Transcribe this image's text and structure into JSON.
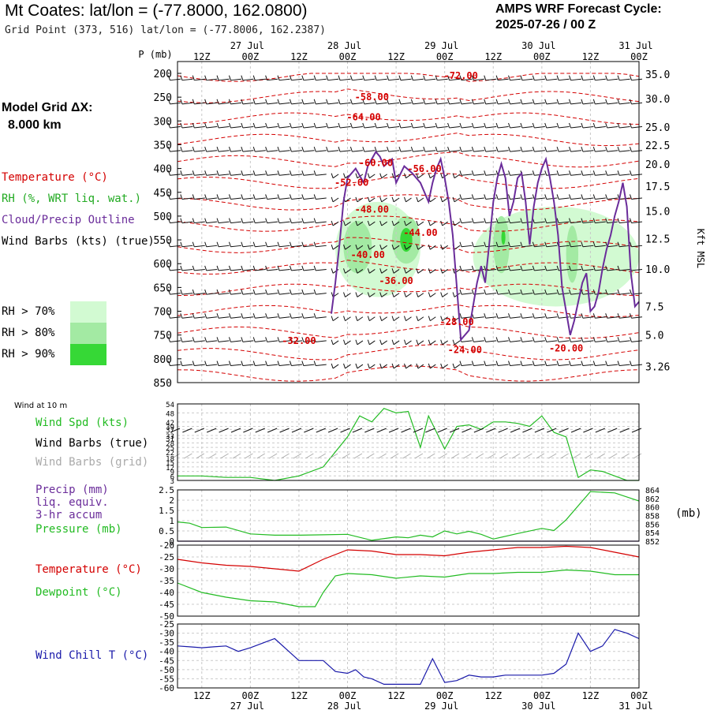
{
  "header": {
    "title": "Mt Coates:  lat/lon = (-77.8000, 162.0800)",
    "subtitle": "Grid Point (373, 516) lat/lon = (-77.8006, 162.2387)",
    "cycle_line1": "AMPS WRF Forecast Cycle:",
    "cycle_line2": "2025-07-26 / 00  Z"
  },
  "model_grid": {
    "line1": "Model Grid ΔX:",
    "line2": "8.000 km"
  },
  "legend": {
    "temperature": "Temperature (°C)",
    "rh": "RH (%, WRT liq. wat.)",
    "cloud": "Cloud/Precip Outline",
    "wind": "Wind Barbs (kts) (true)",
    "rh70": "RH > 70%",
    "rh80": "RH > 80%",
    "rh90": "RH > 90%"
  },
  "colors": {
    "temperature": "#d40000",
    "rh70": "#d2fad2",
    "rh80": "#a3eaa3",
    "rh90": "#36d836",
    "cloud": "#6a2c9a",
    "wind_spd": "#22bb22",
    "pressure": "#22bb22",
    "precip": "#6a2c9a",
    "dewpoint": "#22bb22",
    "windchill": "#1a1aaa",
    "grid_barbs": "#aaaaaa"
  },
  "panel_labels": {
    "wind10": "Wind at 10 m",
    "wind_spd": "Wind Spd (kts)",
    "wind_barbs_true": "Wind Barbs (true)",
    "wind_barbs_grid": "Wind Barbs (grid)",
    "precip1": "Precip (mm)",
    "precip2": "liq. equiv.",
    "precip3": "3-hr accum",
    "pressure": "Pressure (mb)",
    "pressure_unit": "(mb)",
    "temperature": "Temperature (°C)",
    "dewpoint": "Dewpoint (°C)",
    "windchill": "Wind Chill T (°C)"
  },
  "chart_data": {
    "type": "line",
    "time_axis": {
      "start": "2025-07-26 06Z",
      "end": "2025-07-31 00Z",
      "hour_labels": [
        "12Z",
        "00Z",
        "12Z",
        "00Z",
        "12Z",
        "00Z",
        "12Z",
        "00Z",
        "12Z",
        "00Z"
      ],
      "hour_ticks_h": [
        6,
        18,
        30,
        42,
        54,
        66,
        78,
        90,
        102,
        114
      ],
      "date_labels": [
        "27 Jul",
        "28 Jul",
        "29 Jul",
        "30 Jul",
        "31 Jul"
      ],
      "date_ticks_h": [
        18,
        42,
        66,
        90,
        114
      ],
      "range_h": [
        0,
        114
      ]
    },
    "sounding": {
      "pressure_label": "P (mb)",
      "pressure_levels": [
        200,
        250,
        300,
        350,
        400,
        450,
        500,
        550,
        600,
        650,
        700,
        750,
        800,
        850
      ],
      "height_label": "Kft MSL",
      "height_ticks": [
        "35.0",
        "30.0",
        "25.0",
        "22.5",
        "20.0",
        "17.5",
        "15.0",
        "12.5",
        "10.0",
        "7.5",
        "5.0",
        "3.26"
      ],
      "height_tick_p": [
        202,
        253,
        313,
        351,
        391,
        437,
        489,
        547,
        611,
        690,
        750,
        816
      ],
      "temperature_isotherm_labels": [
        {
          "text": "-72.00",
          "h": 70,
          "p": 205
        },
        {
          "text": "-58.00",
          "h": 48,
          "p": 250
        },
        {
          "text": "-64.00",
          "h": 46,
          "p": 292
        },
        {
          "text": "-60.00",
          "h": 49,
          "p": 388
        },
        {
          "text": "-56.00",
          "h": 61,
          "p": 401
        },
        {
          "text": "-52.00",
          "h": 43,
          "p": 430
        },
        {
          "text": "-48.00",
          "h": 48,
          "p": 486
        },
        {
          "text": "-44.00",
          "h": 60,
          "p": 535
        },
        {
          "text": "-40.00",
          "h": 47,
          "p": 581
        },
        {
          "text": "-36.00",
          "h": 54,
          "p": 636
        },
        {
          "text": "-32.00",
          "h": 30,
          "p": 762
        },
        {
          "text": "-28.00",
          "h": 69,
          "p": 722
        },
        {
          "text": "-24.00",
          "h": 71,
          "p": 781
        },
        {
          "text": "-20.00",
          "h": 96,
          "p": 778
        }
      ],
      "cloud_outline": [
        [
          38,
          705
        ],
        [
          39,
          640
        ],
        [
          40,
          560
        ],
        [
          41,
          470
        ],
        [
          42,
          420
        ],
        [
          44,
          400
        ],
        [
          46,
          430
        ],
        [
          47,
          395
        ],
        [
          49,
          365
        ],
        [
          50,
          375
        ],
        [
          51,
          395
        ],
        [
          53,
          380
        ],
        [
          54,
          430
        ],
        [
          56,
          395
        ],
        [
          58,
          410
        ],
        [
          60,
          430
        ],
        [
          62,
          470
        ],
        [
          63,
          430
        ],
        [
          64,
          400
        ],
        [
          65,
          380
        ],
        [
          66,
          420
        ],
        [
          67,
          470
        ],
        [
          68,
          540
        ],
        [
          69,
          650
        ],
        [
          70,
          760
        ],
        [
          72,
          740
        ],
        [
          73,
          690
        ],
        [
          74,
          640
        ],
        [
          75,
          605
        ],
        [
          76,
          640
        ],
        [
          77,
          560
        ],
        [
          78,
          470
        ],
        [
          79,
          420
        ],
        [
          80,
          390
        ],
        [
          81,
          420
        ],
        [
          82,
          500
        ],
        [
          83,
          470
        ],
        [
          84,
          420
        ],
        [
          85,
          410
        ],
        [
          86,
          470
        ],
        [
          87,
          560
        ],
        [
          88,
          480
        ],
        [
          89,
          430
        ],
        [
          90,
          400
        ],
        [
          91,
          380
        ],
        [
          92,
          420
        ],
        [
          93,
          470
        ],
        [
          94,
          540
        ],
        [
          95,
          650
        ],
        [
          96,
          700
        ],
        [
          97,
          750
        ],
        [
          98,
          720
        ],
        [
          99,
          680
        ],
        [
          100,
          640
        ],
        [
          101,
          620
        ],
        [
          102,
          700
        ],
        [
          103,
          690
        ],
        [
          104,
          660
        ],
        [
          105,
          610
        ],
        [
          106,
          570
        ],
        [
          107,
          540
        ],
        [
          108,
          500
        ],
        [
          109,
          470
        ],
        [
          110,
          430
        ],
        [
          111,
          480
        ],
        [
          112,
          620
        ],
        [
          113,
          690
        ],
        [
          114,
          680
        ]
      ],
      "rh_regions": [
        {
          "level": 70,
          "h0": 39,
          "h1": 60,
          "p0": 470,
          "p1": 670
        },
        {
          "level": 70,
          "h0": 73,
          "h1": 114,
          "p0": 480,
          "p1": 690
        },
        {
          "level": 80,
          "h0": 41,
          "h1": 48,
          "p0": 510,
          "p1": 620
        },
        {
          "level": 80,
          "h0": 53,
          "h1": 60,
          "p0": 500,
          "p1": 600
        },
        {
          "level": 80,
          "h0": 78,
          "h1": 82,
          "p0": 500,
          "p1": 620
        },
        {
          "level": 80,
          "h0": 96,
          "h1": 99,
          "p0": 520,
          "p1": 640
        },
        {
          "level": 90,
          "h0": 55,
          "h1": 58,
          "p0": 525,
          "p1": 575
        },
        {
          "level": 90,
          "h0": 80,
          "h1": 81,
          "p0": 530,
          "p1": 560
        }
      ]
    },
    "wind10": {
      "y_ticks": [
        54,
        48,
        42,
        39,
        37,
        33,
        31,
        28,
        25,
        22,
        18,
        15,
        12,
        9,
        6,
        3
      ],
      "speed_kts": [
        [
          0,
          6
        ],
        [
          6,
          6
        ],
        [
          12,
          5
        ],
        [
          18,
          5
        ],
        [
          24,
          3
        ],
        [
          30,
          6
        ],
        [
          36,
          12
        ],
        [
          42,
          32
        ],
        [
          45,
          46
        ],
        [
          48,
          42
        ],
        [
          51,
          51
        ],
        [
          54,
          48
        ],
        [
          57,
          49
        ],
        [
          60,
          25
        ],
        [
          62,
          46
        ],
        [
          66,
          24
        ],
        [
          69,
          39
        ],
        [
          72,
          40
        ],
        [
          75,
          37
        ],
        [
          78,
          42
        ],
        [
          81,
          42
        ],
        [
          84,
          41
        ],
        [
          87,
          39
        ],
        [
          90,
          46
        ],
        [
          93,
          35
        ],
        [
          96,
          32
        ],
        [
          99,
          5
        ],
        [
          102,
          10
        ],
        [
          105,
          9
        ],
        [
          108,
          6
        ],
        [
          111,
          3
        ],
        [
          114,
          3
        ]
      ]
    },
    "precip_pressure": {
      "precip_ticks": [
        "2.5",
        "2",
        "1.5",
        "1",
        "0.5",
        "0"
      ],
      "pressure_ticks": [
        864,
        862,
        860,
        858,
        856,
        854,
        852
      ],
      "precip_mm": [
        [
          0,
          0
        ],
        [
          114,
          0
        ]
      ],
      "pressure_mb": [
        [
          0,
          856.5
        ],
        [
          3,
          856.2
        ],
        [
          6,
          855.2
        ],
        [
          12,
          855.3
        ],
        [
          18,
          853.7
        ],
        [
          24,
          853.4
        ],
        [
          30,
          853.4
        ],
        [
          36,
          853.5
        ],
        [
          42,
          853.6
        ],
        [
          48,
          852.2
        ],
        [
          54,
          853.0
        ],
        [
          57,
          852.8
        ],
        [
          60,
          853.4
        ],
        [
          63,
          853.0
        ],
        [
          66,
          854.4
        ],
        [
          69,
          853.7
        ],
        [
          72,
          854.3
        ],
        [
          75,
          853.6
        ],
        [
          78,
          852.5
        ],
        [
          84,
          853.8
        ],
        [
          90,
          855.0
        ],
        [
          93,
          854.5
        ],
        [
          96,
          857.0
        ],
        [
          102,
          863.6
        ],
        [
          108,
          863.3
        ],
        [
          114,
          861.4
        ]
      ]
    },
    "temp_dew": {
      "y_ticks": [
        -20,
        -25,
        -30,
        -35,
        -40,
        -45,
        -50
      ],
      "temperature": [
        [
          0,
          -26
        ],
        [
          6,
          -27.5
        ],
        [
          12,
          -28.5
        ],
        [
          18,
          -29
        ],
        [
          24,
          -30
        ],
        [
          30,
          -31
        ],
        [
          36,
          -26
        ],
        [
          42,
          -22
        ],
        [
          48,
          -22.5
        ],
        [
          54,
          -24
        ],
        [
          60,
          -24
        ],
        [
          66,
          -24.5
        ],
        [
          72,
          -23
        ],
        [
          78,
          -22
        ],
        [
          84,
          -21
        ],
        [
          90,
          -21
        ],
        [
          96,
          -20.5
        ],
        [
          102,
          -21
        ],
        [
          108,
          -23
        ],
        [
          114,
          -25
        ]
      ],
      "dewpoint": [
        [
          0,
          -36
        ],
        [
          6,
          -40
        ],
        [
          12,
          -42
        ],
        [
          18,
          -43.5
        ],
        [
          24,
          -44
        ],
        [
          30,
          -46
        ],
        [
          34,
          -46
        ],
        [
          36,
          -40
        ],
        [
          39,
          -33
        ],
        [
          42,
          -32
        ],
        [
          48,
          -32.5
        ],
        [
          54,
          -34
        ],
        [
          60,
          -33
        ],
        [
          66,
          -33.5
        ],
        [
          72,
          -32
        ],
        [
          78,
          -32
        ],
        [
          84,
          -31.5
        ],
        [
          90,
          -31.5
        ],
        [
          96,
          -30.5
        ],
        [
          102,
          -31
        ],
        [
          108,
          -32.5
        ],
        [
          114,
          -32.5
        ]
      ]
    },
    "windchill": {
      "y_ticks": [
        -25,
        -30,
        -35,
        -40,
        -45,
        -50,
        -55,
        -60
      ],
      "windchill": [
        [
          0,
          -37
        ],
        [
          3,
          -37.5
        ],
        [
          6,
          -38
        ],
        [
          9,
          -37.5
        ],
        [
          12,
          -37
        ],
        [
          15,
          -40
        ],
        [
          18,
          -38
        ],
        [
          24,
          -33
        ],
        [
          30,
          -45
        ],
        [
          36,
          -45
        ],
        [
          39,
          -51
        ],
        [
          42,
          -52
        ],
        [
          44,
          -50
        ],
        [
          46,
          -54
        ],
        [
          48,
          -55
        ],
        [
          51,
          -58
        ],
        [
          54,
          -58
        ],
        [
          57,
          -58
        ],
        [
          60,
          -58
        ],
        [
          63,
          -44
        ],
        [
          66,
          -57
        ],
        [
          69,
          -56
        ],
        [
          72,
          -53
        ],
        [
          75,
          -54
        ],
        [
          78,
          -54
        ],
        [
          81,
          -53
        ],
        [
          84,
          -53
        ],
        [
          87,
          -53
        ],
        [
          90,
          -53
        ],
        [
          93,
          -52
        ],
        [
          96,
          -47
        ],
        [
          99,
          -30
        ],
        [
          102,
          -40
        ],
        [
          105,
          -37
        ],
        [
          108,
          -28
        ],
        [
          111,
          -30
        ],
        [
          114,
          -33
        ]
      ]
    }
  }
}
